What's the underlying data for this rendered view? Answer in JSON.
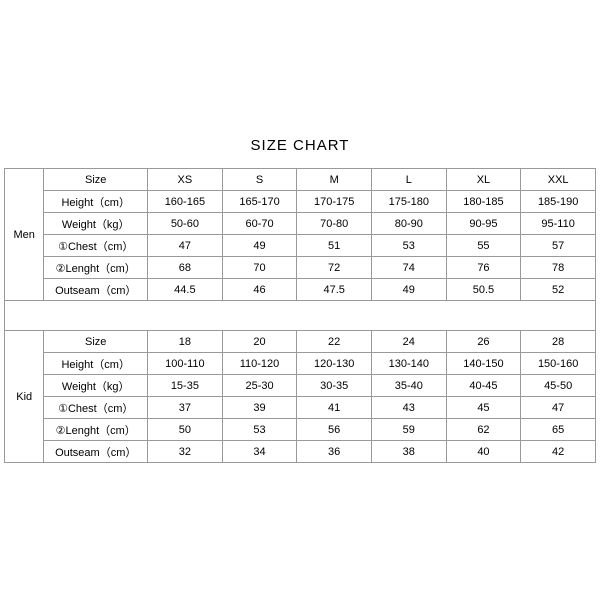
{
  "title": "SIZE CHART",
  "colors": {
    "border": "#999999",
    "text": "#000000",
    "background": "#ffffff"
  },
  "groups": [
    {
      "label": "Men",
      "attrs": [
        "Size",
        "Height（cm）",
        "Weight（kg）",
        "①Chest（cm）",
        "②Lenght（cm）",
        "Outseam（cm）"
      ],
      "cols": [
        "XS",
        "S",
        "M",
        "L",
        "XL",
        "XXL"
      ],
      "rows": [
        [
          "160-165",
          "165-170",
          "170-175",
          "175-180",
          "180-185",
          "185-190"
        ],
        [
          "50-60",
          "60-70",
          "70-80",
          "80-90",
          "90-95",
          "95-110"
        ],
        [
          "47",
          "49",
          "51",
          "53",
          "55",
          "57"
        ],
        [
          "68",
          "70",
          "72",
          "74",
          "76",
          "78"
        ],
        [
          "44.5",
          "46",
          "47.5",
          "49",
          "50.5",
          "52"
        ]
      ]
    },
    {
      "label": "Kid",
      "attrs": [
        "Size",
        "Height（cm）",
        "Weight（kg）",
        "①Chest（cm）",
        "②Lenght（cm）",
        "Outseam（cm）"
      ],
      "cols": [
        "18",
        "20",
        "22",
        "24",
        "26",
        "28"
      ],
      "rows": [
        [
          "100-110",
          "110-120",
          "120-130",
          "130-140",
          "140-150",
          "150-160"
        ],
        [
          "15-35",
          "25-30",
          "30-35",
          "35-40",
          "40-45",
          "45-50"
        ],
        [
          "37",
          "39",
          "41",
          "43",
          "45",
          "47"
        ],
        [
          "50",
          "53",
          "56",
          "59",
          "62",
          "65"
        ],
        [
          "32",
          "34",
          "36",
          "38",
          "40",
          "42"
        ]
      ]
    }
  ]
}
